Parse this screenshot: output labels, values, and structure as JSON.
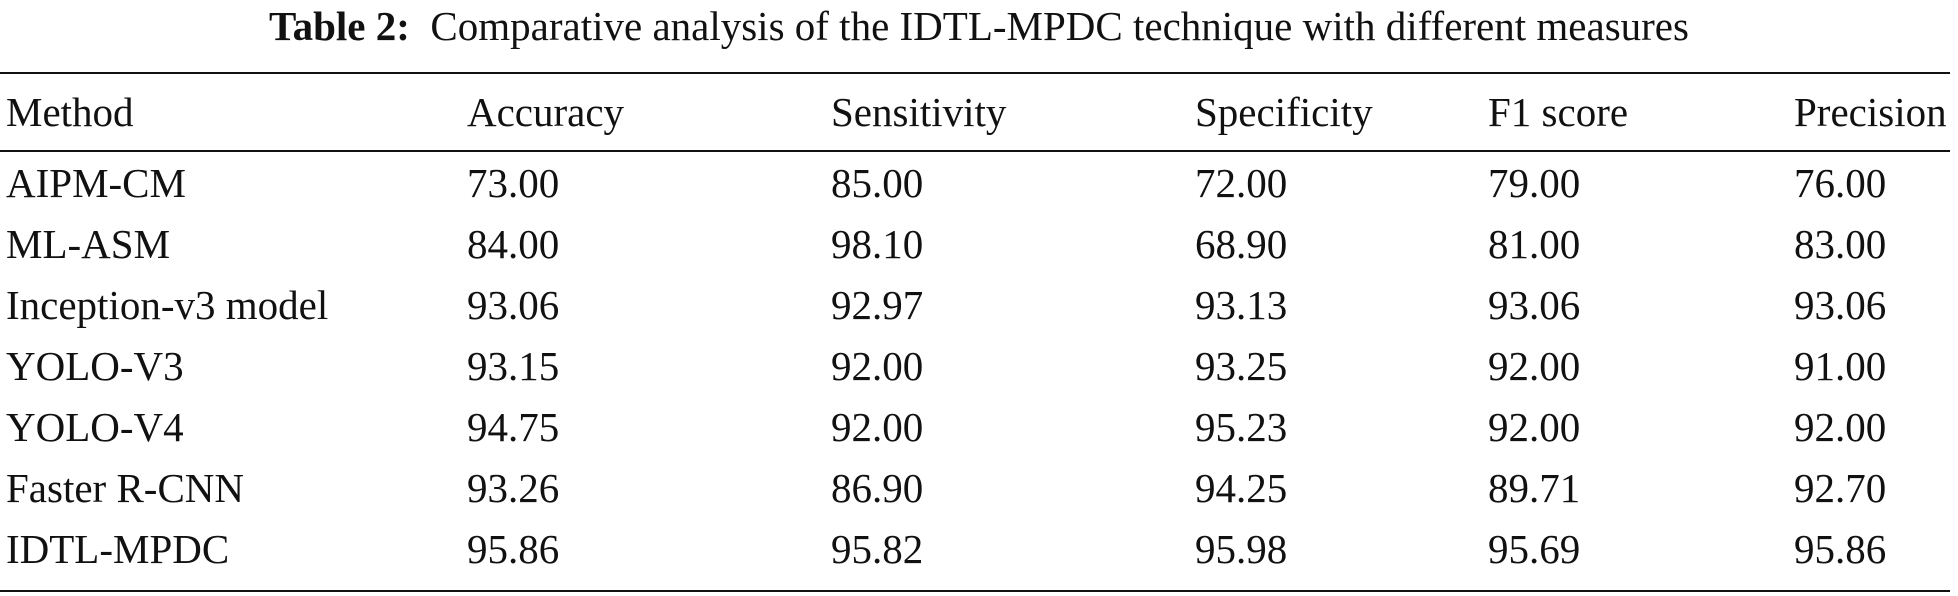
{
  "caption": {
    "label": "Table 2:",
    "text": "Comparative analysis of the IDTL-MPDC technique with different measures"
  },
  "table": {
    "headers": [
      "Method",
      "Accuracy",
      "Sensitivity",
      "Specificity",
      "F1 score",
      "Precision"
    ],
    "rows": [
      [
        "AIPM-CM",
        "73.00",
        "85.00",
        "72.00",
        "79.00",
        "76.00"
      ],
      [
        "ML-ASM",
        "84.00",
        "98.10",
        "68.90",
        "81.00",
        "83.00"
      ],
      [
        "Inception-v3 model",
        "93.06",
        "92.97",
        "93.13",
        "93.06",
        "93.06"
      ],
      [
        "YOLO-V3",
        "93.15",
        "92.00",
        "93.25",
        "92.00",
        "91.00"
      ],
      [
        "YOLO-V4",
        "94.75",
        "92.00",
        "95.23",
        "92.00",
        "92.00"
      ],
      [
        "Faster R-CNN",
        "93.26",
        "86.90",
        "94.25",
        "89.71",
        "92.70"
      ],
      [
        "IDTL-MPDC",
        "95.86",
        "95.82",
        "95.98",
        "95.69",
        "95.86"
      ]
    ]
  }
}
